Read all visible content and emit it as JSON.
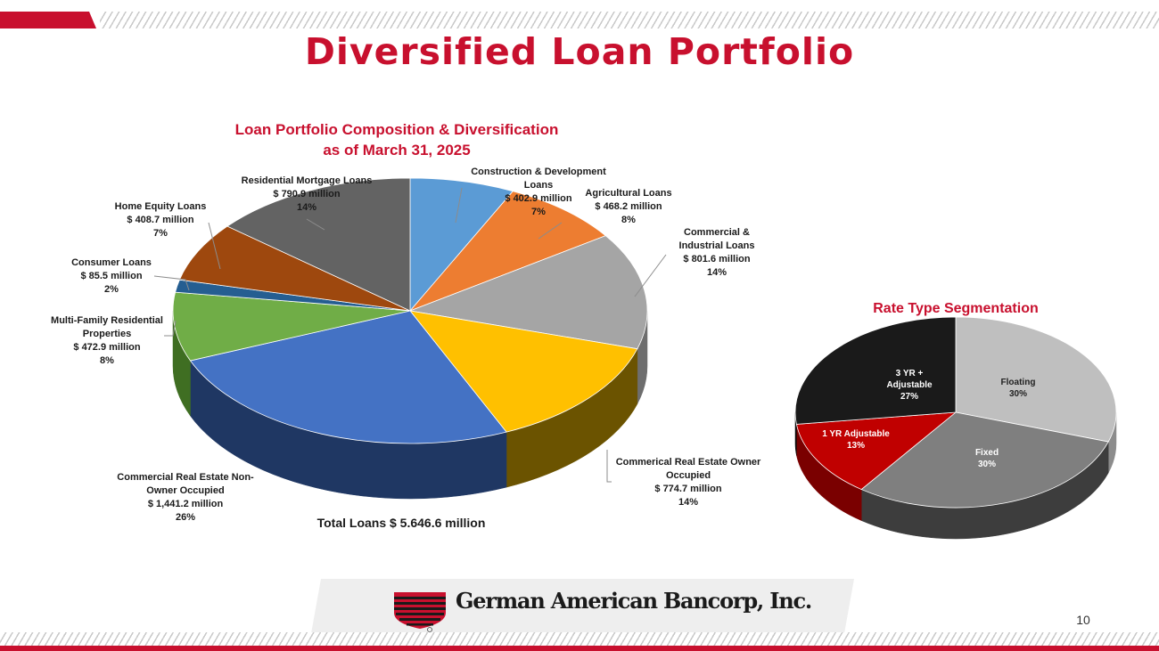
{
  "slide": {
    "title": "Diversified Loan Portfolio",
    "page_number": "10",
    "company": "German American Bancorp, Inc."
  },
  "colors": {
    "brand_red": "#c8102e"
  },
  "chart_data": [
    {
      "type": "pie",
      "title_line1": "Loan Portfolio Composition & Diversification",
      "title_line2": "as of March 31, 2025",
      "total_label": "Total Loans  $ 5.646.6 million",
      "slices": [
        {
          "label": "Construction & Development Loans",
          "amount": "$ 402.9 million",
          "pct": "7%",
          "value": 402.9,
          "color": "#5b9bd5",
          "side": "#2e6aa0"
        },
        {
          "label": "Agricultural Loans",
          "amount": "$ 468.2 million",
          "pct": "8%",
          "value": 468.2,
          "color": "#ed7d31",
          "side": "#a3521a"
        },
        {
          "label": "Commercial & Industrial Loans",
          "amount": "$ 801.6 million",
          "pct": "14%",
          "value": 801.6,
          "color": "#a5a5a5",
          "side": "#6e6e6e"
        },
        {
          "label": "Commerical Real Estate Owner Occupied",
          "amount": "$ 774.7 million",
          "pct": "14%",
          "value": 774.7,
          "color": "#ffc000",
          "side": "#6b5300"
        },
        {
          "label": "Commercial Real Estate Non-Owner Occupied",
          "amount": "$ 1,441.2 million",
          "pct": "26%",
          "value": 1441.2,
          "color": "#4472c4",
          "side": "#1f3763"
        },
        {
          "label": "Multi-Family Residential Properties",
          "amount": "$ 472.9 million",
          "pct": "8%",
          "value": 472.9,
          "color": "#70ad47",
          "side": "#3f6e22"
        },
        {
          "label": "Consumer Loans",
          "amount": "$ 85.5 million",
          "pct": "2%",
          "value": 85.5,
          "color": "#255e91",
          "side": "#153a5c"
        },
        {
          "label": "Home Equity Loans",
          "amount": "$ 408.7 million",
          "pct": "7%",
          "value": 408.7,
          "color": "#9e480e",
          "side": "#5c2808"
        },
        {
          "label": "Residential Mortgage Loans",
          "amount": "$ 790.9 million",
          "pct": "14%",
          "value": 790.9,
          "color": "#636363",
          "side": "#3a3a3a"
        }
      ]
    },
    {
      "type": "pie",
      "title": "Rate Type Segmentation",
      "slices": [
        {
          "label": "Floating",
          "pct": "30%",
          "value": 30,
          "color": "#bfbfbf",
          "side": "#8c8c8c"
        },
        {
          "label": "Fixed",
          "pct": "30%",
          "value": 30,
          "color": "#7f7f7f",
          "side": "#3d3d3d"
        },
        {
          "label": "1 YR Adjustable",
          "pct": "13%",
          "value": 13,
          "color": "#c00000",
          "side": "#7a0000"
        },
        {
          "label": "3 YR + Adjustable",
          "pct": "27%",
          "value": 27,
          "color": "#1a1a1a",
          "side": "#0a0a0a"
        }
      ]
    }
  ]
}
